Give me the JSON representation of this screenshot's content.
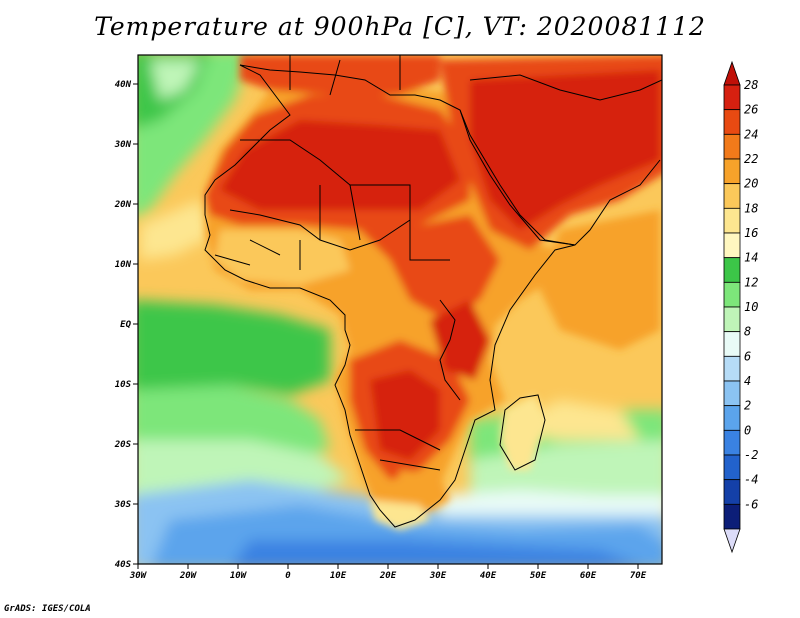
{
  "title": "Temperature at 900hPa [C], VT: 2020081112",
  "credit": "GrADS: IGES/COLA",
  "map": {
    "lon_labels": [
      "30W",
      "20W",
      "10W",
      "0",
      "10E",
      "20E",
      "30E",
      "40E",
      "50E",
      "60E",
      "70E"
    ],
    "lat_labels": [
      "40N",
      "30N",
      "20N",
      "10N",
      "EQ",
      "10S",
      "20S",
      "30S",
      "40S"
    ],
    "variable": "Temperature",
    "level": "900hPa",
    "units": "C",
    "valid_time": "2020081112"
  },
  "colorbar": {
    "labels": [
      "28",
      "26",
      "24",
      "22",
      "20",
      "18",
      "16",
      "14",
      "12",
      "10",
      "8",
      "6",
      "4",
      "2",
      "0",
      "-2",
      "-4",
      "-6"
    ],
    "colors": [
      "#d62010",
      "#e84a12",
      "#f27a1a",
      "#f7a22a",
      "#fbc85a",
      "#fde690",
      "#fff7c0",
      "#3cc648",
      "#7de67a",
      "#bff5b8",
      "#e9fbf7",
      "#b6dcf7",
      "#8bc3f2",
      "#5ba4ec",
      "#3a82e2",
      "#2262cc",
      "#1440a8",
      "#0c1e78"
    ],
    "top_color": "#c01008",
    "bottom_color": "#dcdcf8"
  }
}
